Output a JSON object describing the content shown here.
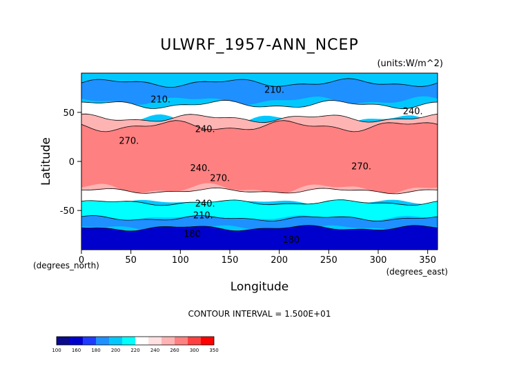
{
  "chart_data": {
    "type": "heatmap",
    "title": "ULWRF_1957-ANN_NCEP",
    "units_note": "(units:W/m^2)",
    "xlabel": "Longitude",
    "ylabel": "Latitude",
    "x_unit_note": "(degrees_east)",
    "y_unit_note": "(degrees_north)",
    "xlim": [
      0,
      360
    ],
    "ylim": [
      -90,
      90
    ],
    "x_ticks": [
      0,
      50,
      100,
      150,
      200,
      250,
      300,
      350
    ],
    "y_ticks": [
      -50,
      0,
      50
    ],
    "contour_interval_text": "CONTOUR INTERVAL = 1.500E+01",
    "contour_labels": [
      {
        "text": "210.",
        "lon": 80,
        "lat": 60
      },
      {
        "text": "210.",
        "lon": 195,
        "lat": 70
      },
      {
        "text": "240.",
        "lon": 335,
        "lat": 48
      },
      {
        "text": "240.",
        "lon": 125,
        "lat": 30
      },
      {
        "text": "270.",
        "lon": 48,
        "lat": 18
      },
      {
        "text": "240.",
        "lon": 120,
        "lat": -10
      },
      {
        "text": "270.",
        "lon": 140,
        "lat": -20
      },
      {
        "text": "270.",
        "lon": 283,
        "lat": -8
      },
      {
        "text": "240.",
        "lon": 125,
        "lat": -46
      },
      {
        "text": "210.",
        "lon": 123,
        "lat": -58
      },
      {
        "text": "180",
        "lon": 112,
        "lat": -77
      },
      {
        "text": "180",
        "lon": 212,
        "lat": -83
      }
    ],
    "colorbar": {
      "levels": [
        100,
        160,
        180,
        200,
        220,
        240,
        260,
        300,
        350
      ],
      "colors": [
        "#0a0a8c",
        "#0000cd",
        "#1e3cff",
        "#1e90ff",
        "#00c8ff",
        "#00ffff",
        "#ffffff",
        "#ffe1e1",
        "#ffb4b4",
        "#ff8080",
        "#ff4040",
        "#ff0000"
      ]
    }
  }
}
